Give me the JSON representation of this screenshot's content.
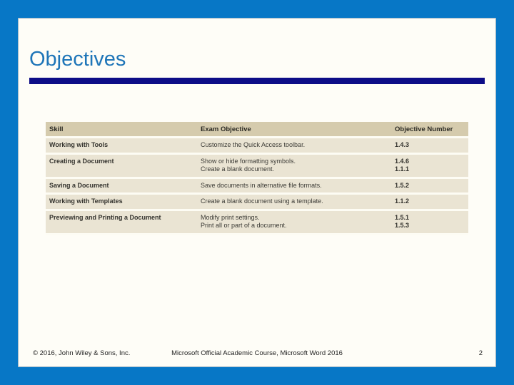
{
  "slide": {
    "title": "Objectives",
    "table": {
      "columns": [
        "Skill",
        "Exam Objective",
        "Objective Number"
      ],
      "rows": [
        {
          "skill": "Working with Tools",
          "objectives": [
            "Customize the Quick Access toolbar."
          ],
          "numbers": [
            "1.4.3"
          ]
        },
        {
          "skill": "Creating a Document",
          "objectives": [
            "Show or hide formatting symbols.",
            "Create a blank document."
          ],
          "numbers": [
            "1.4.6",
            "1.1.1"
          ]
        },
        {
          "skill": "Saving a Document",
          "objectives": [
            "Save documents in alternative file formats."
          ],
          "numbers": [
            "1.5.2"
          ]
        },
        {
          "skill": "Working with Templates",
          "objectives": [
            "Create a blank document using a template."
          ],
          "numbers": [
            "1.1.2"
          ]
        },
        {
          "skill": "Previewing and Printing a Document",
          "objectives": [
            "Modify print settings.",
            "Print all or part of a document."
          ],
          "numbers": [
            "1.5.1",
            "1.5.3"
          ]
        }
      ]
    },
    "footer": {
      "copyright": "© 2016, John Wiley & Sons, Inc.",
      "course": "Microsoft Official Academic Course, Microsoft Word 2016",
      "page_number": "2"
    },
    "colors": {
      "frame_blue": "#0777C6",
      "slide_background": "#FEFDF7",
      "title_blue": "#1E75B8",
      "rule_navy": "#0D0D87",
      "table_header_bg": "#D5CBAD",
      "table_row_bg": "#EAE4D3"
    }
  }
}
